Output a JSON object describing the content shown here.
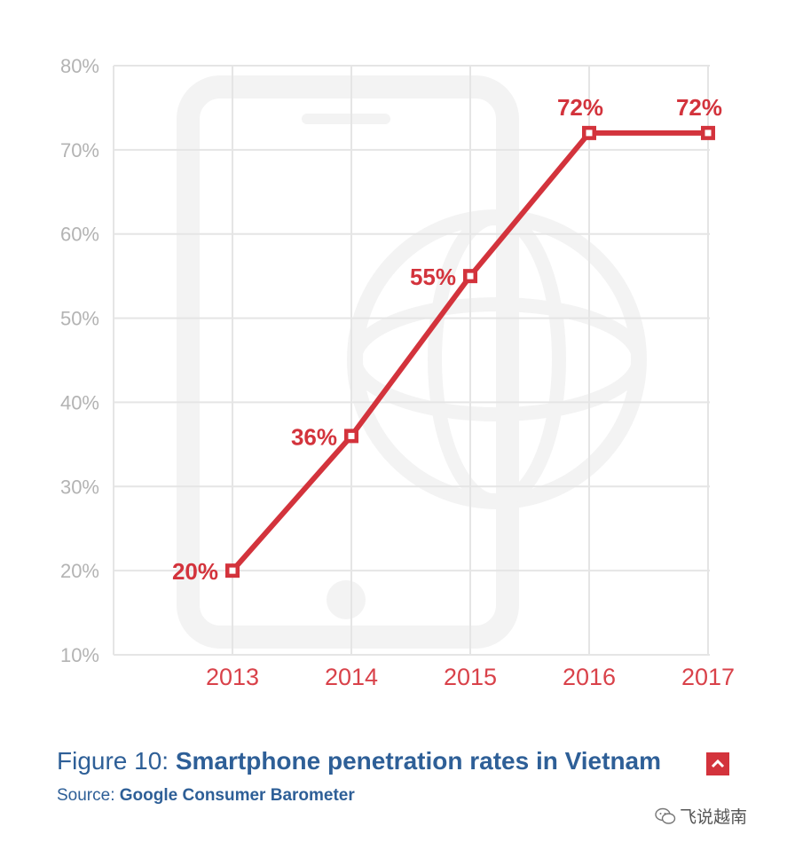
{
  "chart_data": {
    "type": "line",
    "categories": [
      "2013",
      "2014",
      "2015",
      "2016",
      "2017"
    ],
    "values": [
      20,
      36,
      55,
      72,
      72
    ],
    "data_labels": [
      "20%",
      "36%",
      "55%",
      "72%",
      "72%"
    ],
    "ylim": [
      10,
      80
    ],
    "yticks": [
      "10%",
      "20%",
      "30%",
      "40%",
      "50%",
      "60%",
      "70%",
      "80%"
    ],
    "grid": true,
    "line_color": "#d3333c",
    "title": "Smartphone penetration rates in Vietnam",
    "xlabel": "",
    "ylabel": ""
  },
  "caption": {
    "prefix": "Figure 10: ",
    "title": "Smartphone penetration rates in Vietnam",
    "icon": "chevron-up-icon"
  },
  "source": {
    "prefix": "Source: ",
    "name": "Google Consumer Barometer"
  },
  "watermark": {
    "text": "飞说越南",
    "icon": "wechat-icon"
  },
  "colors": {
    "accent": "#d3333c",
    "caption_blue": "#2e5f97",
    "axis_gray": "#b3b3b3",
    "grid": "#e5e5e5"
  }
}
